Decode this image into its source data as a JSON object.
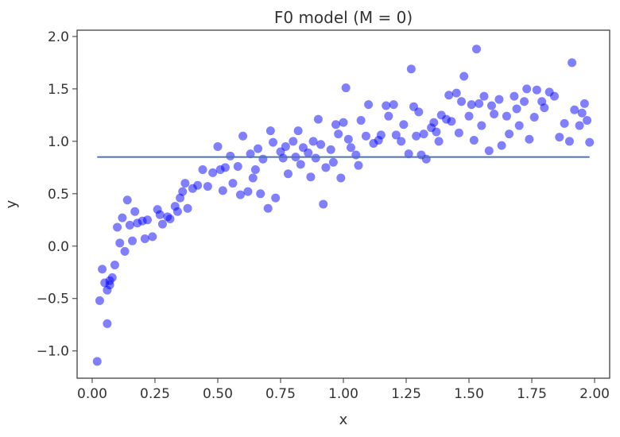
{
  "chart_data": {
    "type": "scatter",
    "title": "F0 model (M = 0)",
    "xlabel": "x",
    "ylabel": "y",
    "xlim": [
      -0.06,
      2.06
    ],
    "ylim": [
      -1.26,
      2.06
    ],
    "x_ticks": [
      0.0,
      0.25,
      0.5,
      0.75,
      1.0,
      1.25,
      1.5,
      1.75,
      2.0
    ],
    "x_tick_labels": [
      "0.00",
      "0.25",
      "0.50",
      "0.75",
      "1.00",
      "1.25",
      "1.50",
      "1.75",
      "2.00"
    ],
    "y_ticks": [
      -1.0,
      -0.5,
      0.0,
      0.5,
      1.0,
      1.5,
      2.0
    ],
    "y_tick_labels": [
      "−1.0",
      "−0.5",
      "0.0",
      "0.5",
      "1.0",
      "1.5",
      "2.0"
    ],
    "grid": false,
    "colors": {
      "points": "#0000ff",
      "line": "#4c72b0",
      "axes": "#333333"
    },
    "series": [
      {
        "kind": "scatter",
        "x": [
          0.02,
          0.03,
          0.04,
          0.05,
          0.06,
          0.06,
          0.07,
          0.07,
          0.08,
          0.09,
          0.1,
          0.11,
          0.12,
          0.13,
          0.14,
          0.15,
          0.16,
          0.17,
          0.18,
          0.2,
          0.21,
          0.22,
          0.24,
          0.26,
          0.27,
          0.28,
          0.3,
          0.31,
          0.33,
          0.34,
          0.35,
          0.36,
          0.37,
          0.38,
          0.4,
          0.42,
          0.44,
          0.46,
          0.48,
          0.5,
          0.51,
          0.52,
          0.53,
          0.55,
          0.56,
          0.58,
          0.59,
          0.6,
          0.62,
          0.63,
          0.64,
          0.65,
          0.66,
          0.67,
          0.68,
          0.7,
          0.71,
          0.72,
          0.73,
          0.75,
          0.76,
          0.77,
          0.78,
          0.8,
          0.81,
          0.82,
          0.83,
          0.84,
          0.86,
          0.87,
          0.88,
          0.89,
          0.9,
          0.91,
          0.92,
          0.93,
          0.95,
          0.96,
          0.97,
          0.98,
          0.99,
          1.0,
          1.01,
          1.02,
          1.03,
          1.05,
          1.06,
          1.07,
          1.09,
          1.1,
          1.12,
          1.14,
          1.15,
          1.17,
          1.18,
          1.2,
          1.21,
          1.23,
          1.24,
          1.26,
          1.27,
          1.28,
          1.29,
          1.3,
          1.31,
          1.32,
          1.33,
          1.35,
          1.36,
          1.37,
          1.38,
          1.39,
          1.41,
          1.42,
          1.43,
          1.45,
          1.46,
          1.47,
          1.48,
          1.5,
          1.51,
          1.52,
          1.53,
          1.54,
          1.55,
          1.56,
          1.58,
          1.59,
          1.6,
          1.62,
          1.63,
          1.65,
          1.66,
          1.68,
          1.69,
          1.7,
          1.72,
          1.73,
          1.74,
          1.76,
          1.77,
          1.79,
          1.8,
          1.82,
          1.84,
          1.86,
          1.88,
          1.9,
          1.91,
          1.92,
          1.94,
          1.95,
          1.96,
          1.97,
          1.98
        ],
        "y": [
          -1.1,
          -0.52,
          -0.22,
          -0.35,
          -0.42,
          -0.74,
          -0.33,
          -0.37,
          -0.3,
          -0.18,
          0.18,
          0.03,
          0.27,
          -0.05,
          0.44,
          0.2,
          0.05,
          0.33,
          0.22,
          0.24,
          0.07,
          0.25,
          0.09,
          0.35,
          0.3,
          0.21,
          0.28,
          0.26,
          0.38,
          0.33,
          0.46,
          0.52,
          0.6,
          0.36,
          0.55,
          0.58,
          0.73,
          0.57,
          0.7,
          0.95,
          0.73,
          0.53,
          0.75,
          0.86,
          0.6,
          0.76,
          0.49,
          1.05,
          0.52,
          0.88,
          0.65,
          0.73,
          0.93,
          0.5,
          0.83,
          0.36,
          1.1,
          0.99,
          0.46,
          0.9,
          0.84,
          0.95,
          0.69,
          1.0,
          0.85,
          1.1,
          0.78,
          0.94,
          0.89,
          0.66,
          1.0,
          0.84,
          1.21,
          0.97,
          0.4,
          0.75,
          0.92,
          0.8,
          1.16,
          1.07,
          0.65,
          1.18,
          1.51,
          1.02,
          0.94,
          0.87,
          0.77,
          1.2,
          1.05,
          1.35,
          0.98,
          1.01,
          1.06,
          1.34,
          1.24,
          1.35,
          1.06,
          1.0,
          1.16,
          0.88,
          1.69,
          1.33,
          1.05,
          1.28,
          0.87,
          1.07,
          0.83,
          1.13,
          1.18,
          1.09,
          1.0,
          1.25,
          1.21,
          1.44,
          1.19,
          1.46,
          1.08,
          1.38,
          1.62,
          1.24,
          1.35,
          1.01,
          1.88,
          1.36,
          1.15,
          1.43,
          0.91,
          1.34,
          1.26,
          1.4,
          0.96,
          1.24,
          1.07,
          1.43,
          1.31,
          1.15,
          1.38,
          1.5,
          1.02,
          1.23,
          1.49,
          1.38,
          1.32,
          1.47,
          1.43,
          1.04,
          1.17,
          1.0,
          1.75,
          1.3,
          1.15,
          1.27,
          1.36,
          1.2,
          0.99
        ]
      },
      {
        "kind": "line",
        "x": [
          0.02,
          1.98
        ],
        "y": [
          0.85,
          0.85
        ]
      }
    ]
  }
}
